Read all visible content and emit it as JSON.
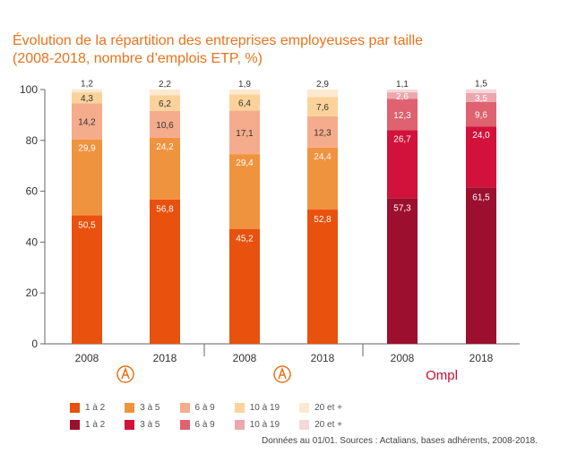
{
  "title_line1": "Évolution de la répartition des entreprises employeuses par taille",
  "title_line2": "(2008-2018, nombre d’emplois ETP, %)",
  "source": "Données au 01/01. Sources : Actalians, bases adhérents, 2008-2018.",
  "logos": [
    {
      "name": "actalians-logo-a",
      "color": "#e8731c"
    },
    {
      "name": "actalians-logo-b",
      "color": "#e8731c"
    },
    {
      "name": "opcapl-logo",
      "text": "Ompl",
      "color": "#c8102e"
    }
  ],
  "legend": {
    "row1": [
      {
        "label": "1 à 2",
        "color": "#e8510e"
      },
      {
        "label": "3 à 5",
        "color": "#f0933f"
      },
      {
        "label": "6 à 9",
        "color": "#f5ac8c"
      },
      {
        "label": "10 à 19",
        "color": "#fbd39a"
      },
      {
        "label": "20 et +",
        "color": "#fde9cf"
      }
    ],
    "row2": [
      {
        "label": "1 à 2",
        "color": "#9c0f2e"
      },
      {
        "label": "3 à 5",
        "color": "#d2123a"
      },
      {
        "label": "6 à 9",
        "color": "#de6270"
      },
      {
        "label": "10 à 19",
        "color": "#eea6ad"
      },
      {
        "label": "20 et +",
        "color": "#f6d8da"
      }
    ]
  },
  "chart_data": {
    "type": "bar",
    "stacked": true,
    "ylim": [
      0,
      100
    ],
    "yticks": [
      0,
      20,
      40,
      60,
      80,
      100
    ],
    "categories": [
      "2008",
      "2018",
      "2008",
      "2018",
      "2008",
      "2018"
    ],
    "series": [
      {
        "name": "1 à 2",
        "values": [
          50.5,
          56.8,
          45.2,
          52.8,
          57.3,
          61.5
        ],
        "labels": [
          "50,5",
          "56,8",
          "45,2",
          "52,8",
          "57,3",
          "61,5"
        ]
      },
      {
        "name": "3 à 5",
        "values": [
          29.9,
          24.2,
          29.4,
          24.4,
          26.7,
          24.0
        ],
        "labels": [
          "29,9",
          "24,2",
          "29,4",
          "24,4",
          "26,7",
          "24,0"
        ]
      },
      {
        "name": "6 à 9",
        "values": [
          14.2,
          10.6,
          17.1,
          12.3,
          12.3,
          9.6
        ],
        "labels": [
          "14,2",
          "10,6",
          "17,1",
          "12,3",
          "12,3",
          "9,6"
        ]
      },
      {
        "name": "10 à 19",
        "values": [
          4.3,
          6.2,
          6.4,
          7.6,
          2.6,
          3.5
        ],
        "labels": [
          "4,3",
          "6,2",
          "6,4",
          "7,6",
          "2,6",
          "3,5"
        ]
      },
      {
        "name": "20 et +",
        "values": [
          1.2,
          2.2,
          1.9,
          2.9,
          1.1,
          1.5
        ],
        "labels": [
          "1,2",
          "2,2",
          "1,9",
          "2,9",
          "1,1",
          "1,5"
        ]
      }
    ],
    "bar_palettes": [
      [
        "#e8510e",
        "#f0933f",
        "#f5ac8c",
        "#fbd39a",
        "#fde9cf"
      ],
      [
        "#e8510e",
        "#f0933f",
        "#f5ac8c",
        "#fbd39a",
        "#fde9cf"
      ],
      [
        "#e8510e",
        "#f0933f",
        "#f5ac8c",
        "#fbd39a",
        "#fde9cf"
      ],
      [
        "#e8510e",
        "#f0933f",
        "#f5ac8c",
        "#fbd39a",
        "#fde9cf"
      ],
      [
        "#9c0f2e",
        "#d2123a",
        "#de6270",
        "#eea6ad",
        "#f6d8da"
      ],
      [
        "#9c0f2e",
        "#d2123a",
        "#de6270",
        "#eea6ad",
        "#f6d8da"
      ]
    ]
  }
}
